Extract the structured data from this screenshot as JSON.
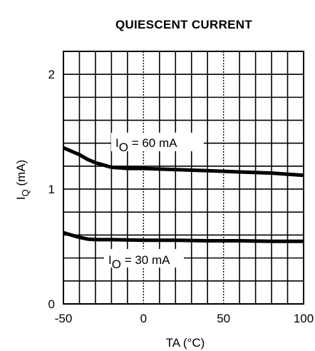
{
  "chart_data": {
    "type": "line",
    "title": "QUIESCENT CURRENT",
    "xlabel": "TA (°C)",
    "ylabel": "I",
    "ylabel_sub": "Q",
    "ylabel_unit": " (mA)",
    "xlim": [
      -50,
      100
    ],
    "ylim": [
      0,
      2.2
    ],
    "xticks": [
      -50,
      0,
      50,
      100
    ],
    "xtick_labels": [
      "-50",
      "0",
      "50",
      "100"
    ],
    "yticks": [
      0,
      1,
      2
    ],
    "ytick_labels": [
      "0",
      "1",
      "2"
    ],
    "x_minor_step": 10,
    "y_minor_step": 0.2,
    "grid": true,
    "series": [
      {
        "name": "IO = 60 mA",
        "annotation": {
          "main": "I",
          "sub": "O",
          "rest": " = 60 mA"
        },
        "x": [
          -50,
          -45,
          -40,
          -35,
          -30,
          -25,
          -20,
          -15,
          -10,
          0,
          20,
          40,
          60,
          80,
          100
        ],
        "y": [
          1.36,
          1.33,
          1.3,
          1.26,
          1.23,
          1.21,
          1.19,
          1.185,
          1.18,
          1.18,
          1.17,
          1.16,
          1.15,
          1.14,
          1.12
        ]
      },
      {
        "name": "IO = 30 mA",
        "annotation": {
          "main": "I",
          "sub": "O",
          "rest": " = 30 mA"
        },
        "x": [
          -50,
          -45,
          -40,
          -35,
          -30,
          -20,
          0,
          20,
          40,
          60,
          80,
          100
        ],
        "y": [
          0.62,
          0.6,
          0.58,
          0.565,
          0.56,
          0.56,
          0.555,
          0.555,
          0.55,
          0.55,
          0.545,
          0.545
        ]
      }
    ]
  }
}
